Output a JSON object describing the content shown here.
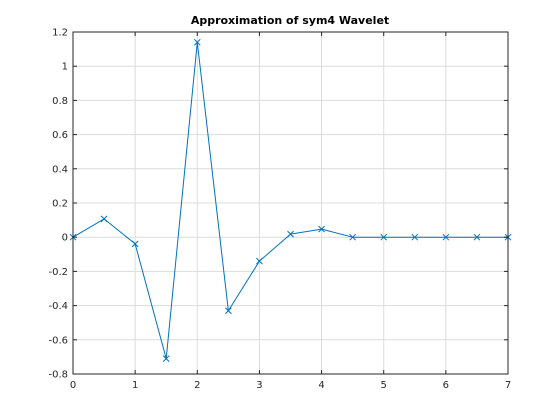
{
  "chart_data": {
    "type": "line",
    "title": "Approximation of sym4 Wavelet",
    "xlabel": "",
    "ylabel": "",
    "xlim": [
      0,
      7
    ],
    "ylim": [
      -0.8,
      1.2
    ],
    "xticks": [
      0,
      1,
      2,
      3,
      4,
      5,
      6,
      7
    ],
    "yticks": [
      -0.8,
      -0.6,
      -0.4,
      -0.2,
      0,
      0.2,
      0.4,
      0.6,
      0.8,
      1,
      1.2
    ],
    "xtick_labels": [
      "0",
      "1",
      "2",
      "3",
      "4",
      "5",
      "6",
      "7"
    ],
    "ytick_labels": [
      "-0.8",
      "-0.6",
      "-0.4",
      "-0.2",
      "0",
      "0.2",
      "0.4",
      "0.6",
      "0.8",
      "1",
      "1.2"
    ],
    "grid": true,
    "marker": "x",
    "series": [
      {
        "color": "#0072BD",
        "x": [
          0,
          0.5,
          1,
          1.5,
          2,
          2.5,
          3,
          3.5,
          4,
          4.5,
          5,
          5.5,
          6,
          6.5,
          7
        ],
        "y": [
          0.0,
          0.107,
          -0.039,
          -0.71,
          1.14,
          -0.43,
          -0.14,
          0.018,
          0.047,
          0.0,
          0.0,
          0.0,
          0.0,
          0.0,
          0.0
        ]
      }
    ]
  }
}
